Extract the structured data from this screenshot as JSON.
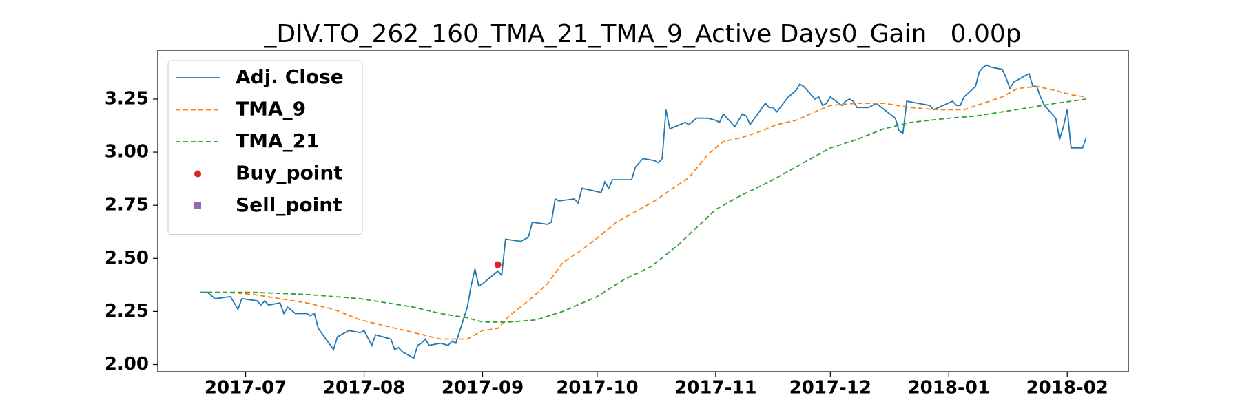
{
  "chart_data": {
    "type": "line",
    "title": "_DIV.TO_262_160_TMA_21_TMA_9_Active Days0_Gain   0.00p",
    "xlim": [
      "2017-06-08",
      "2018-02-17"
    ],
    "xticks": [
      "2017-07",
      "2017-08",
      "2017-09",
      "2017-10",
      "2017-11",
      "2017-12",
      "2018-01",
      "2018-02"
    ],
    "ylim": [
      1.966,
      3.48
    ],
    "yticks": [
      {
        "value": 2,
        "label": "2.00"
      },
      {
        "value": 2.25,
        "label": "2.25"
      },
      {
        "value": 2.5,
        "label": "2.50"
      },
      {
        "value": 2.75,
        "label": "2.75"
      },
      {
        "value": 3,
        "label": "3.00"
      },
      {
        "value": 3.25,
        "label": "3.25"
      }
    ],
    "grid": false,
    "legend": "upper left",
    "series": [
      {
        "name": "Adj. Close",
        "color": "#1f77b4",
        "style": "solid",
        "marker": "none",
        "x": [
          "2017-06-19",
          "2017-06-21",
          "2017-06-23",
          "2017-06-27",
          "2017-06-29",
          "2017-06-30",
          "2017-07-04",
          "2017-07-05",
          "2017-07-06",
          "2017-07-07",
          "2017-07-10",
          "2017-07-11",
          "2017-07-12",
          "2017-07-14",
          "2017-07-17",
          "2017-07-18",
          "2017-07-19",
          "2017-07-20",
          "2017-07-24",
          "2017-07-25",
          "2017-07-26",
          "2017-07-28",
          "2017-07-31",
          "2017-08-01",
          "2017-08-03",
          "2017-08-04",
          "2017-08-08",
          "2017-08-09",
          "2017-08-10",
          "2017-08-11",
          "2017-08-14",
          "2017-08-15",
          "2017-08-16",
          "2017-08-17",
          "2017-08-18",
          "2017-08-21",
          "2017-08-23",
          "2017-08-24",
          "2017-08-25",
          "2017-08-28",
          "2017-08-29",
          "2017-08-30",
          "2017-08-31",
          "2017-09-01",
          "2017-09-05",
          "2017-09-06",
          "2017-09-07",
          "2017-09-11",
          "2017-09-13",
          "2017-09-14",
          "2017-09-18",
          "2017-09-19",
          "2017-09-20",
          "2017-09-21",
          "2017-09-25",
          "2017-09-26",
          "2017-09-27",
          "2017-10-02",
          "2017-10-03",
          "2017-10-04",
          "2017-10-05",
          "2017-10-10",
          "2017-10-11",
          "2017-10-13",
          "2017-10-16",
          "2017-10-17",
          "2017-10-18",
          "2017-10-19",
          "2017-10-20",
          "2017-10-24",
          "2017-10-25",
          "2017-10-27",
          "2017-10-30",
          "2017-11-01",
          "2017-11-02",
          "2017-11-03",
          "2017-11-06",
          "2017-11-08",
          "2017-11-09",
          "2017-11-10",
          "2017-11-14",
          "2017-11-15",
          "2017-11-16",
          "2017-11-17",
          "2017-11-20",
          "2017-11-22",
          "2017-11-23",
          "2017-11-24",
          "2017-11-27",
          "2017-11-28",
          "2017-11-29",
          "2017-11-30",
          "2017-12-01",
          "2017-12-04",
          "2017-12-05",
          "2017-12-06",
          "2017-12-07",
          "2017-12-08",
          "2017-12-11",
          "2017-12-13",
          "2017-12-18",
          "2017-12-19",
          "2017-12-20",
          "2017-12-21",
          "2017-12-27",
          "2017-12-28",
          "2018-01-02",
          "2018-01-03",
          "2018-01-04",
          "2018-01-05",
          "2018-01-08",
          "2018-01-09",
          "2018-01-10",
          "2018-01-11",
          "2018-01-12",
          "2018-01-15",
          "2018-01-16",
          "2018-01-17",
          "2018-01-18",
          "2018-01-22",
          "2018-01-23",
          "2018-01-24",
          "2018-01-25",
          "2018-01-26",
          "2018-01-29",
          "2018-01-30",
          "2018-01-31",
          "2018-02-01",
          "2018-02-02",
          "2018-02-05",
          "2018-02-06"
        ],
        "values": [
          2.34,
          2.34,
          2.31,
          2.32,
          2.26,
          2.31,
          2.3,
          2.28,
          2.3,
          2.28,
          2.29,
          2.24,
          2.27,
          2.24,
          2.24,
          2.23,
          2.24,
          2.17,
          2.07,
          2.13,
          2.14,
          2.16,
          2.15,
          2.16,
          2.09,
          2.14,
          2.12,
          2.07,
          2.08,
          2.06,
          2.03,
          2.09,
          2.1,
          2.12,
          2.09,
          2.1,
          2.09,
          2.11,
          2.1,
          2.27,
          2.37,
          2.45,
          2.37,
          2.38,
          2.44,
          2.42,
          2.59,
          2.58,
          2.6,
          2.67,
          2.66,
          2.67,
          2.78,
          2.77,
          2.78,
          2.76,
          2.83,
          2.81,
          2.86,
          2.83,
          2.87,
          2.87,
          2.93,
          2.97,
          2.96,
          2.95,
          2.97,
          3.2,
          3.11,
          3.14,
          3.13,
          3.16,
          3.16,
          3.15,
          3.14,
          3.18,
          3.12,
          3.18,
          3.17,
          3.13,
          3.23,
          3.21,
          3.21,
          3.19,
          3.26,
          3.29,
          3.32,
          3.31,
          3.25,
          3.26,
          3.22,
          3.23,
          3.26,
          3.22,
          3.24,
          3.25,
          3.24,
          3.21,
          3.21,
          3.23,
          3.16,
          3.1,
          3.09,
          3.24,
          3.22,
          3.2,
          3.24,
          3.22,
          3.22,
          3.26,
          3.31,
          3.38,
          3.4,
          3.41,
          3.4,
          3.39,
          3.35,
          3.3,
          3.33,
          3.37,
          3.31,
          3.31,
          3.26,
          3.22,
          3.16,
          3.06,
          3.12,
          3.2,
          3.02,
          3.02,
          3.07
        ]
      },
      {
        "name": "TMA_9",
        "color": "#ff7f0e",
        "style": "dashed",
        "marker": "none",
        "x": [
          "2017-06-19",
          "2017-06-26",
          "2017-07-03",
          "2017-07-10",
          "2017-07-17",
          "2017-07-24",
          "2017-07-31",
          "2017-08-07",
          "2017-08-14",
          "2017-08-21",
          "2017-08-28",
          "2017-09-01",
          "2017-09-05",
          "2017-09-08",
          "2017-09-13",
          "2017-09-18",
          "2017-09-22",
          "2017-09-27",
          "2017-10-02",
          "2017-10-06",
          "2017-10-11",
          "2017-10-16",
          "2017-10-20",
          "2017-10-25",
          "2017-10-30",
          "2017-11-03",
          "2017-11-08",
          "2017-11-13",
          "2017-11-17",
          "2017-11-22",
          "2017-11-27",
          "2017-12-01",
          "2017-12-08",
          "2017-12-15",
          "2017-12-22",
          "2017-12-29",
          "2018-01-05",
          "2018-01-10",
          "2018-01-15",
          "2018-01-19",
          "2018-01-24",
          "2018-01-29",
          "2018-02-02",
          "2018-02-06"
        ],
        "values": [
          2.34,
          2.34,
          2.33,
          2.31,
          2.29,
          2.26,
          2.21,
          2.18,
          2.15,
          2.12,
          2.12,
          2.16,
          2.17,
          2.23,
          2.3,
          2.38,
          2.48,
          2.54,
          2.61,
          2.67,
          2.72,
          2.77,
          2.82,
          2.88,
          2.99,
          3.05,
          3.07,
          3.1,
          3.13,
          3.15,
          3.19,
          3.22,
          3.23,
          3.23,
          3.21,
          3.2,
          3.2,
          3.23,
          3.26,
          3.3,
          3.31,
          3.29,
          3.27,
          3.26
        ]
      },
      {
        "name": "TMA_21",
        "color": "#2ca02c",
        "style": "dashed",
        "marker": "none",
        "x": [
          "2017-06-19",
          "2017-07-03",
          "2017-07-17",
          "2017-07-31",
          "2017-08-07",
          "2017-08-14",
          "2017-08-21",
          "2017-08-28",
          "2017-09-01",
          "2017-09-08",
          "2017-09-15",
          "2017-09-22",
          "2017-10-01",
          "2017-10-08",
          "2017-10-15",
          "2017-10-22",
          "2017-11-01",
          "2017-11-08",
          "2017-11-15",
          "2017-11-22",
          "2017-12-01",
          "2017-12-08",
          "2017-12-15",
          "2017-12-22",
          "2018-01-01",
          "2018-01-08",
          "2018-01-15",
          "2018-01-22",
          "2018-01-29",
          "2018-02-06"
        ],
        "values": [
          2.34,
          2.34,
          2.33,
          2.31,
          2.29,
          2.27,
          2.24,
          2.22,
          2.2,
          2.2,
          2.21,
          2.25,
          2.32,
          2.4,
          2.46,
          2.56,
          2.73,
          2.8,
          2.86,
          2.93,
          3.02,
          3.06,
          3.11,
          3.14,
          3.16,
          3.17,
          3.19,
          3.21,
          3.23,
          3.25
        ]
      },
      {
        "name": "Buy_point",
        "color": "#d62728",
        "style": "none",
        "marker": "circle",
        "x": [
          "2017-09-05"
        ],
        "values": [
          2.47
        ]
      },
      {
        "name": "Sell_point",
        "color": "#9467bd",
        "style": "none",
        "marker": "square",
        "x": [],
        "values": []
      }
    ]
  }
}
